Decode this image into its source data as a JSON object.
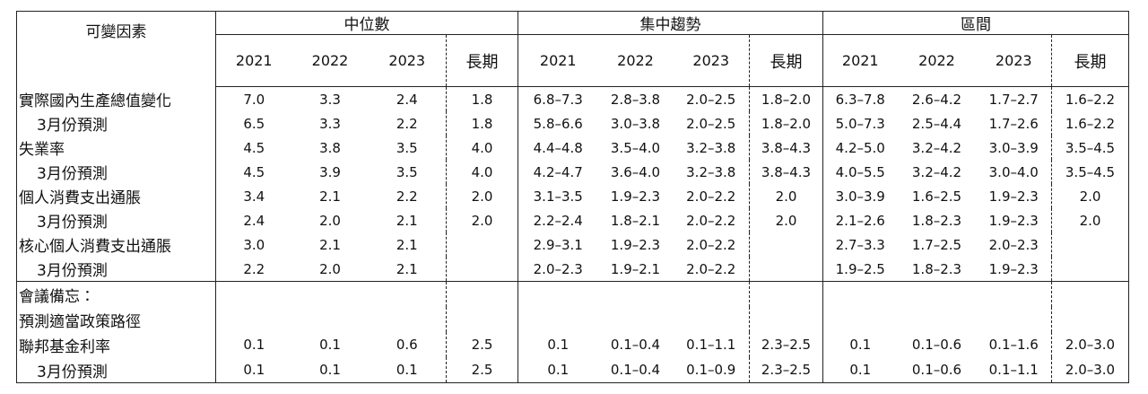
{
  "table": {
    "corner": "可變因素",
    "groups": [
      {
        "title": "中位數",
        "columns": [
          "2021",
          "2022",
          "2023",
          "長期"
        ]
      },
      {
        "title": "集中趨勢",
        "columns": [
          "2021",
          "2022",
          "2023",
          "長期"
        ]
      },
      {
        "title": "區間",
        "columns": [
          "2021",
          "2022",
          "2023",
          "長期"
        ]
      }
    ],
    "sections": [
      {
        "items": [
          {
            "label": "實際國內生產總值變化",
            "cells": [
              "7.0",
              "3.3",
              "2.4",
              "1.8",
              "6.8–7.3",
              "2.8–3.8",
              "2.0–2.5",
              "1.8–2.0",
              "6.3–7.8",
              "2.6–4.2",
              "1.7–2.7",
              "1.6–2.2"
            ],
            "march": {
              "label": "3月份預測",
              "cells": [
                "6.5",
                "3.3",
                "2.2",
                "1.8",
                "5.8–6.6",
                "3.0–3.8",
                "2.0–2.5",
                "1.8–2.0",
                "5.0–7.3",
                "2.5–4.4",
                "1.7–2.6",
                "1.6–2.2"
              ]
            }
          },
          {
            "label": "失業率",
            "cells": [
              "4.5",
              "3.8",
              "3.5",
              "4.0",
              "4.4–4.8",
              "3.5–4.0",
              "3.2–3.8",
              "3.8–4.3",
              "4.2–5.0",
              "3.2–4.2",
              "3.0–3.9",
              "3.5–4.5"
            ],
            "march": {
              "label": "3月份預測",
              "cells": [
                "4.5",
                "3.9",
                "3.5",
                "4.0",
                "4.2–4.7",
                "3.6–4.0",
                "3.2–3.8",
                "3.8–4.3",
                "4.0–5.5",
                "3.2–4.2",
                "3.0–4.0",
                "3.5–4.5"
              ]
            }
          },
          {
            "label": "個人消費支出通脹",
            "cells": [
              "3.4",
              "2.1",
              "2.2",
              "2.0",
              "3.1–3.5",
              "1.9–2.3",
              "2.0–2.2",
              "2.0",
              "3.0–3.9",
              "1.6–2.5",
              "1.9–2.3",
              "2.0"
            ],
            "march": {
              "label": "3月份預測",
              "cells": [
                "2.4",
                "2.0",
                "2.1",
                "2.0",
                "2.2–2.4",
                "1.8–2.1",
                "2.0–2.2",
                "2.0",
                "2.1–2.6",
                "1.8–2.3",
                "1.9–2.3",
                "2.0"
              ]
            }
          },
          {
            "label": "核心個人消費支出通脹",
            "cells": [
              "3.0",
              "2.1",
              "2.1",
              null,
              "2.9–3.1",
              "1.9–2.3",
              "2.0–2.2",
              null,
              "2.7–3.3",
              "1.7–2.5",
              "2.0–2.3",
              null
            ],
            "march": {
              "label": "3月份預測",
              "cells": [
                "2.2",
                "2.0",
                "2.1",
                null,
                "2.0–2.3",
                "1.9–2.1",
                "2.0–2.2",
                null,
                "1.9–2.5",
                "1.8–2.3",
                "1.9–2.3",
                null
              ]
            }
          }
        ]
      },
      {
        "notes": [
          "會議備忘：",
          "預測適當政策路徑"
        ],
        "items": [
          {
            "label": "聯邦基金利率",
            "cells": [
              "0.1",
              "0.1",
              "0.6",
              "2.5",
              "0.1",
              "0.1–0.4",
              "0.1–1.1",
              "2.3–2.5",
              "0.1",
              "0.1–0.6",
              "0.1–1.6",
              "2.0–3.0"
            ],
            "march": {
              "label": "3月份預測",
              "cells": [
                "0.1",
                "0.1",
                "0.1",
                "2.5",
                "0.1",
                "0.1–0.4",
                "0.1–0.9",
                "2.3–2.5",
                "0.1",
                "0.1–0.6",
                "0.1–1.1",
                "2.0–3.0"
              ]
            }
          }
        ]
      }
    ]
  }
}
